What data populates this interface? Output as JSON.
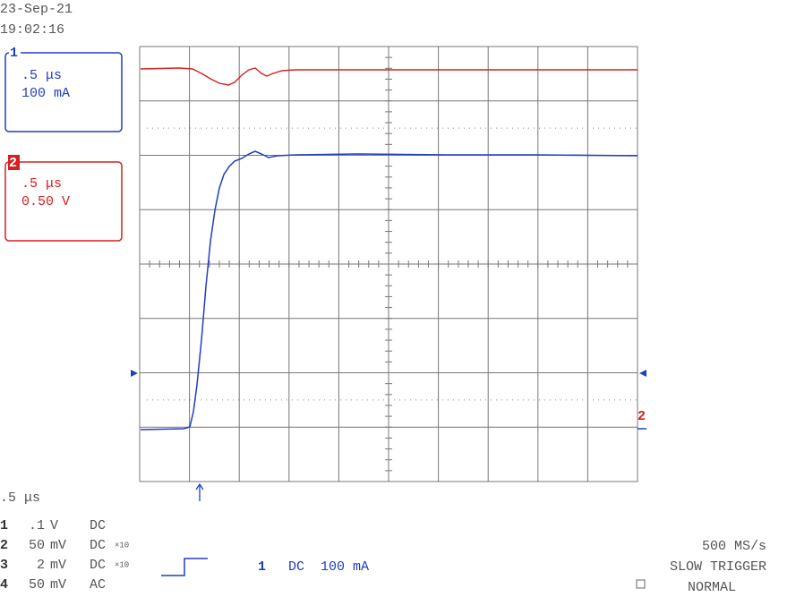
{
  "header": {
    "date": "23-Sep-21",
    "time": "19:02:16"
  },
  "channel_boxes": [
    {
      "label": "1",
      "timebase": ".5 μs",
      "scale": "100 mA",
      "color": "#1f3fbf"
    },
    {
      "label": "2",
      "timebase": ".5 μs",
      "scale": "0.50 V",
      "color": "#d42020"
    }
  ],
  "timebase": ".5 μs",
  "channels": [
    {
      "number": "1",
      "scale": ".1",
      "unit": "V",
      "coupling": "DC"
    },
    {
      "number": "2",
      "scale": "50",
      "unit": "mV",
      "coupling": "DC",
      "probe": "×10"
    },
    {
      "number": "3",
      "scale": "2",
      "unit": "mV",
      "coupling": "DC",
      "probe": "×10"
    },
    {
      "number": "4",
      "scale": "50",
      "unit": "mV",
      "coupling": "AC"
    }
  ],
  "trigger": {
    "channel": "1",
    "coupling": "DC",
    "level": "100 mA"
  },
  "acquisition": {
    "rate": "500 MS/s",
    "mode": "SLOW TRIGGER",
    "state": "NORMAL"
  },
  "marker": "2"
}
